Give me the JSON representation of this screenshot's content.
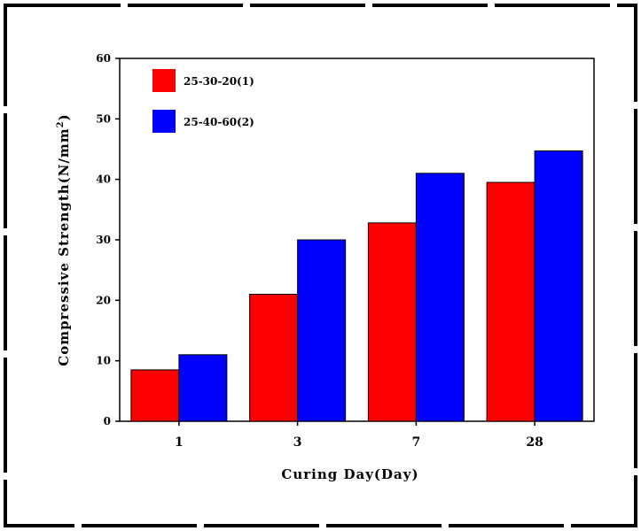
{
  "chart_data": {
    "type": "bar",
    "title": "",
    "categories": [
      "1",
      "3",
      "7",
      "28"
    ],
    "series": [
      {
        "name": "25-30-20(1)",
        "values": [
          8.5,
          21,
          32.8,
          39.5
        ],
        "color": "#ff0000"
      },
      {
        "name": "25-40-60(2)",
        "values": [
          11,
          30,
          41,
          44.7
        ],
        "color": "#0000ff"
      }
    ],
    "xlabel": "Curing Day(Day)",
    "ylabel": "Compressive Strength(N/mm",
    "ylabel_superscript": "2",
    "ylabel_close": ")",
    "ylim": [
      0,
      60
    ],
    "yticks": [
      "0",
      "10",
      "20",
      "30",
      "40",
      "50",
      "60"
    ],
    "grid": false,
    "legend_position": "top-left"
  }
}
